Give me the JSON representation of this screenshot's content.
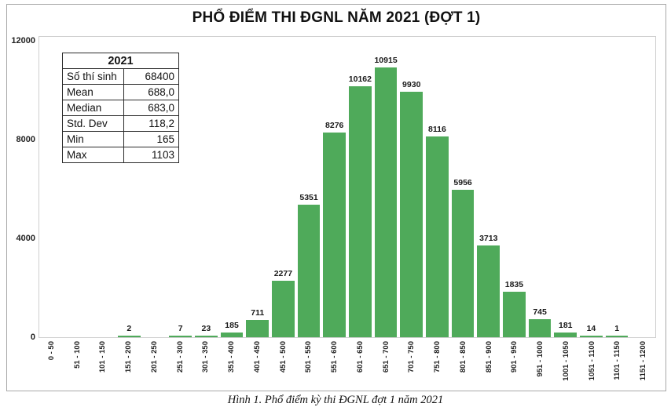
{
  "title": "PHỔ ĐIỂM THI ĐGNL NĂM 2021 (ĐỢT 1)",
  "caption": "Hình 1. Phổ điểm kỳ thi ĐGNL đợt 1 năm 2021",
  "stats_table": {
    "header": "2021",
    "rows": [
      {
        "label": "Số thí sinh",
        "value": "68400"
      },
      {
        "label": "Mean",
        "value": "688,0"
      },
      {
        "label": "Median",
        "value": "683,0"
      },
      {
        "label": "Std. Dev",
        "value": "118,2"
      },
      {
        "label": "Min",
        "value": "165"
      },
      {
        "label": "Max",
        "value": "1103"
      }
    ]
  },
  "chart_data": {
    "type": "bar",
    "title": "PHỔ ĐIỂM THI ĐGNL NĂM 2021 (ĐỢT 1)",
    "categories": [
      "0 - 50",
      "51 - 100",
      "101 - 150",
      "151 - 200",
      "201 - 250",
      "251 - 300",
      "301 - 350",
      "351 - 400",
      "401 - 450",
      "451 - 500",
      "501 - 550",
      "551 - 600",
      "601 - 650",
      "651 - 700",
      "701 - 750",
      "751 - 800",
      "801 - 850",
      "851 - 900",
      "901 - 950",
      "951 - 1000",
      "1001 - 1050",
      "1051 - 1100",
      "1101 - 1150",
      "1151 - 1200"
    ],
    "values": [
      0,
      0,
      0,
      2,
      0,
      7,
      23,
      185,
      711,
      2277,
      5351,
      8276,
      10162,
      10915,
      9930,
      8116,
      5956,
      3713,
      1835,
      745,
      181,
      14,
      1,
      0
    ],
    "xlabel": "",
    "ylabel": "",
    "yticks": [
      0,
      4000,
      8000,
      12000
    ],
    "ylim": [
      0,
      12000
    ],
    "bar_color": "#4faa5a",
    "grid": false,
    "legend": false,
    "data_labels": "nonzero values shown above bars"
  }
}
